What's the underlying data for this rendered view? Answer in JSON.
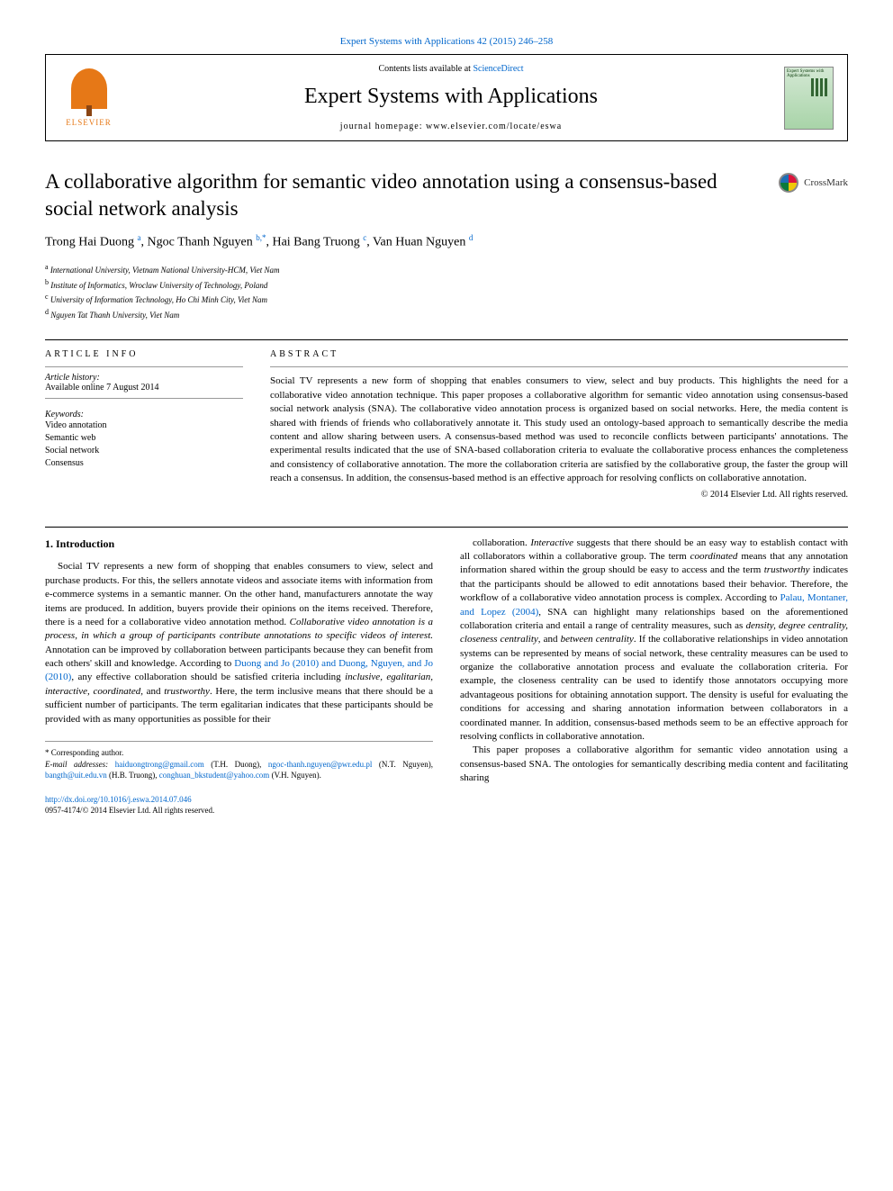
{
  "journal_ref": "Expert Systems with Applications 42 (2015) 246–258",
  "header": {
    "contents_prefix": "Contents lists available at ",
    "contents_link": "ScienceDirect",
    "journal_name": "Expert Systems with Applications",
    "homepage_prefix": "journal homepage: ",
    "homepage": "www.elsevier.com/locate/eswa",
    "elsevier_label": "ELSEVIER",
    "cover_text": "Expert Systems with Applications"
  },
  "title": "A collaborative algorithm for semantic video annotation using a consensus-based social network analysis",
  "crossmark": "CrossMark",
  "authors_html": "Trong Hai Duong <sup>a</sup>, Ngoc Thanh Nguyen <sup>b,*</sup>, Hai Bang Truong <sup>c</sup>, Van Huan Nguyen <sup>d</sup>",
  "affiliations": [
    {
      "sup": "a",
      "text": "International University, Vietnam National University-HCM, Viet Nam"
    },
    {
      "sup": "b",
      "text": "Institute of Informatics, Wroclaw University of Technology, Poland"
    },
    {
      "sup": "c",
      "text": "University of Information Technology, Ho Chi Minh City, Viet Nam"
    },
    {
      "sup": "d",
      "text": "Nguyen Tat Thanh University, Viet Nam"
    }
  ],
  "article_info": {
    "label": "ARTICLE INFO",
    "history_label": "Article history:",
    "history": "Available online 7 August 2014",
    "keywords_label": "Keywords:",
    "keywords": [
      "Video annotation",
      "Semantic web",
      "Social network",
      "Consensus"
    ]
  },
  "abstract": {
    "label": "ABSTRACT",
    "text": "Social TV represents a new form of shopping that enables consumers to view, select and buy products. This highlights the need for a collaborative video annotation technique. This paper proposes a collaborative algorithm for semantic video annotation using consensus-based social network analysis (SNA). The collaborative video annotation process is organized based on social networks. Here, the media content is shared with friends of friends who collaboratively annotate it. This study used an ontology-based approach to semantically describe the media content and allow sharing between users. A consensus-based method was used to reconcile conflicts between participants' annotations. The experimental results indicated that the use of SNA-based collaboration criteria to evaluate the collaborative process enhances the completeness and consistency of collaborative annotation. The more the collaboration criteria are satisfied by the collaborative group, the faster the group will reach a consensus. In addition, the consensus-based method is an effective approach for resolving conflicts on collaborative annotation.",
    "copyright": "© 2014 Elsevier Ltd. All rights reserved."
  },
  "body": {
    "heading": "1. Introduction",
    "col1_p1": "Social TV represents a new form of shopping that enables consumers to view, select and purchase products. For this, the sellers annotate videos and associate items with information from e-commerce systems in a semantic manner. On the other hand, manufacturers annotate the way items are produced. In addition, buyers provide their opinions on the items received. Therefore, there is a need for a collaborative video annotation method. Collaborative video annotation is a process, in which a group of participants contribute annotations to specific videos of interest. Annotation can be improved by collaboration between participants because they can benefit from each others' skill and knowledge. According to Duong and Jo (2010) and Duong, Nguyen, and Jo (2010), any effective collaboration should be satisfied criteria including inclusive, egalitarian, interactive, coordinated, and trustworthy. Here, the term inclusive means that there should be a sufficient number of participants. The term egalitarian indicates that these participants should be provided with as many opportunities as possible for their",
    "col2_p1": "collaboration. Interactive suggests that there should be an easy way to establish contact with all collaborators within a collaborative group. The term coordinated means that any annotation information shared within the group should be easy to access and the term trustworthy indicates that the participants should be allowed to edit annotations based their behavior. Therefore, the workflow of a collaborative video annotation process is complex. According to Palau, Montaner, and Lopez (2004), SNA can highlight many relationships based on the aforementioned collaboration criteria and entail a range of centrality measures, such as density, degree centrality, closeness centrality, and between centrality. If the collaborative relationships in video annotation systems can be represented by means of social network, these centrality measures can be used to organize the collaborative annotation process and evaluate the collaboration criteria. For example, the closeness centrality can be used to identify those annotators occupying more advantageous positions for obtaining annotation support. The density is useful for evaluating the conditions for accessing and sharing annotation information between collaborators in a coordinated manner. In addition, consensus-based methods seem to be an effective approach for resolving conflicts in collaborative annotation.",
    "col2_p2": "This paper proposes a collaborative algorithm for semantic video annotation using a consensus-based SNA. The ontologies for semantically describing media content and facilitating sharing"
  },
  "footnotes": {
    "corresponding": "* Corresponding author.",
    "emails_label": "E-mail addresses:",
    "emails": [
      {
        "addr": "haiduongtrong@gmail.com",
        "who": "(T.H. Duong)"
      },
      {
        "addr": "ngoc-thanh.nguyen@pwr.edu.pl",
        "who": "(N.T. Nguyen)"
      },
      {
        "addr": "bangth@uit.edu.vn",
        "who": "(H.B. Truong)"
      },
      {
        "addr": "conghuan_bkstudent@yahoo.com",
        "who": "(V.H. Nguyen)."
      }
    ]
  },
  "footer": {
    "doi": "http://dx.doi.org/10.1016/j.eswa.2014.07.046",
    "issn_line": "0957-4174/© 2014 Elsevier Ltd. All rights reserved."
  }
}
